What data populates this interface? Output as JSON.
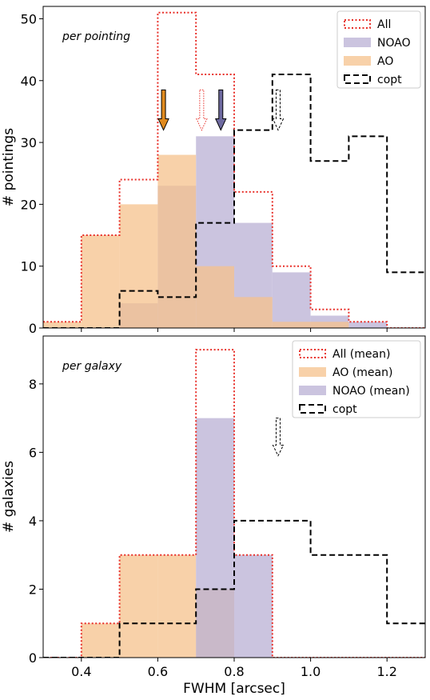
{
  "colors": {
    "all": "#e8302a",
    "noao": "#b9b0d4",
    "ao": "#f5c28c",
    "overlap": "#c8a49a",
    "copt": "#000000",
    "arrow_ao": "#e08a1e",
    "arrow_noao": "#6e6aa0"
  },
  "chart_data": [
    {
      "type": "bar",
      "annotation": "per pointing",
      "xlabel": "",
      "ylabel": "# pointings",
      "xlim": [
        0.3,
        1.3
      ],
      "ylim": [
        0,
        52
      ],
      "yticks": [
        0,
        10,
        20,
        30,
        40,
        50
      ],
      "xticks": [
        0.4,
        0.6,
        0.8,
        1.0,
        1.2
      ],
      "bin_edges": [
        0.3,
        0.4,
        0.5,
        0.6,
        0.7,
        0.8,
        0.9,
        1.0,
        1.1,
        1.2,
        1.3
      ],
      "legend_position": "top-right",
      "series": [
        {
          "name": "All",
          "style": "step-dotted",
          "values": [
            1,
            15,
            24,
            51,
            41,
            22,
            10,
            3,
            1,
            0
          ]
        },
        {
          "name": "NOAO",
          "style": "filled",
          "values": [
            0,
            0,
            4,
            23,
            31,
            17,
            9,
            2,
            1,
            0
          ]
        },
        {
          "name": "AO",
          "style": "filled",
          "values": [
            1,
            15,
            20,
            28,
            10,
            5,
            1,
            1,
            0,
            0
          ]
        },
        {
          "name": "copt",
          "style": "step-dashed",
          "values": [
            0,
            0,
            6,
            5,
            17,
            32,
            41,
            27,
            31,
            9
          ]
        }
      ],
      "arrows": [
        {
          "series": "AO",
          "x": 0.615,
          "style": "filled"
        },
        {
          "series": "All",
          "x": 0.715,
          "style": "hollow-dotted"
        },
        {
          "series": "NOAO",
          "x": 0.765,
          "style": "filled"
        },
        {
          "series": "copt",
          "x": 0.915,
          "style": "hollow-dashed"
        }
      ],
      "arrow_top": 38.5,
      "arrow_bottom": 32
    },
    {
      "type": "bar",
      "annotation": "per galaxy",
      "xlabel": "FWHM [arcsec]",
      "ylabel": "# galaxies",
      "xlim": [
        0.3,
        1.3
      ],
      "ylim": [
        0,
        9.4
      ],
      "yticks": [
        0,
        2,
        4,
        6,
        8
      ],
      "xticks": [
        0.4,
        0.6,
        0.8,
        1.0,
        1.2
      ],
      "bin_edges": [
        0.3,
        0.4,
        0.5,
        0.6,
        0.7,
        0.8,
        0.9,
        1.0,
        1.1,
        1.2,
        1.3
      ],
      "legend_position": "top-right",
      "series": [
        {
          "name": "All (mean)",
          "style": "step-dotted",
          "values": [
            0,
            1,
            3,
            3,
            9,
            3,
            0,
            0,
            0,
            0
          ]
        },
        {
          "name": "AO (mean)",
          "style": "filled",
          "values": [
            0,
            1,
            3,
            3,
            2,
            0,
            0,
            0,
            0,
            0
          ]
        },
        {
          "name": "NOAO (mean)",
          "style": "filled",
          "values": [
            0,
            0,
            0,
            0,
            7,
            3,
            0,
            0,
            0,
            0
          ]
        },
        {
          "name": "copt",
          "style": "step-dashed",
          "values": [
            0,
            0,
            1,
            1,
            2,
            4,
            4,
            3,
            3,
            1
          ]
        }
      ],
      "arrows": [
        {
          "series": "copt",
          "x": 0.915,
          "style": "hollow-dashed"
        }
      ],
      "arrow_top": 7.0,
      "arrow_bottom": 5.9
    }
  ]
}
